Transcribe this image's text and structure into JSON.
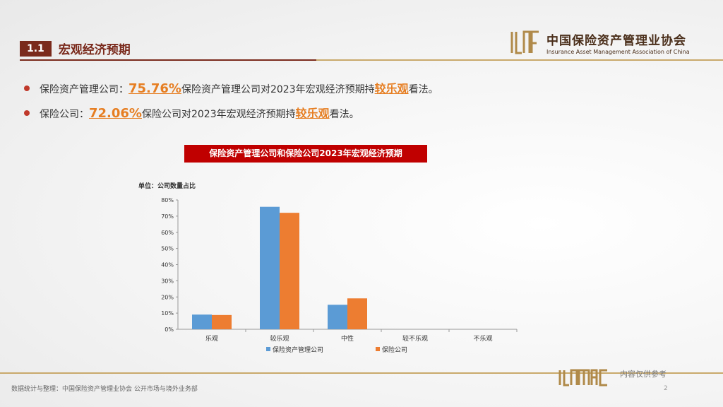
{
  "header": {
    "section_number": "1.1",
    "section_title": "宏观经济预期",
    "logo_cn": "中国保险资产管理业协会",
    "logo_en": "Insurance Asset Management Association of China"
  },
  "bullets": [
    {
      "prefix": "保险资产管理公司：",
      "pct": "75.76%",
      "middle": "保险资产管理公司对2023年宏观经济预期持",
      "highlight": "较乐观",
      "suffix": "看法。"
    },
    {
      "prefix": "保险公司：",
      "pct": "72.06%",
      "middle": "保险公司对2023年宏观经济预期持",
      "highlight": "较乐观",
      "suffix": "看法。"
    }
  ],
  "chart_title": "保险资产管理公司和保险公司2023年宏观经济预期",
  "unit_label": "单位：公司数量占比",
  "chart_data": {
    "type": "bar",
    "categories": [
      "乐观",
      "较乐观",
      "中性",
      "较不乐观",
      "不乐观"
    ],
    "series": [
      {
        "name": "保险资产管理公司",
        "values": [
          9.09,
          75.76,
          15.15,
          0,
          0
        ],
        "color": "#5b9bd5"
      },
      {
        "name": "保险公司",
        "values": [
          8.82,
          72.06,
          19.12,
          0,
          0
        ],
        "color": "#ed7d31"
      }
    ],
    "ylim": [
      0,
      80
    ],
    "yticks": [
      "0%",
      "10%",
      "20%",
      "30%",
      "40%",
      "50%",
      "60%",
      "70%",
      "80%"
    ],
    "legend_position": "bottom"
  },
  "footer": {
    "source": "数据统计与整理：中国保险资产管理业协会 公开市场与境外业务部",
    "note": "内容仅供参考",
    "page": "2"
  }
}
